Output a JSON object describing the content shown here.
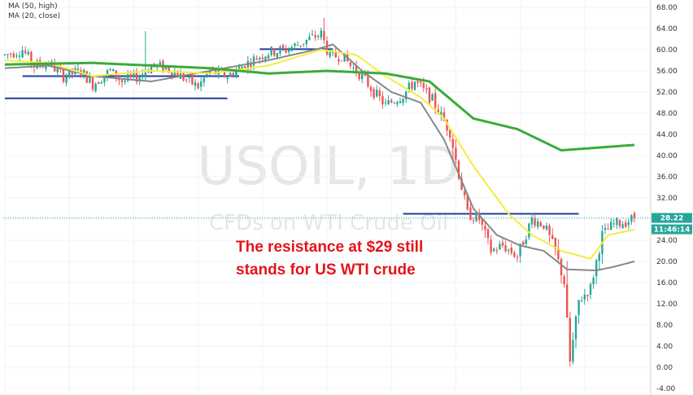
{
  "legend": {
    "ma50": "MA (50, high)",
    "ma20": "MA (20, close)"
  },
  "watermark": {
    "symbol": "USOIL, 1D",
    "description": "CFDs on WTI Crude Oil"
  },
  "annotation": {
    "line1": "The resistance at $29 still",
    "line2": "stands for US WTI crude"
  },
  "price_badge": {
    "price": "28.22",
    "countdown": "11:46:14"
  },
  "colors": {
    "up": "#26a69a",
    "down": "#ef5350",
    "ma50": "#3aab3a",
    "ma20": "#f5ec42",
    "ma_gray": "#888888",
    "level": "#1f3f9e",
    "badge": "#26a69a",
    "annotation": "#e4141b"
  },
  "chart_data": {
    "type": "candlestick",
    "symbol": "USOIL",
    "interval": "1D",
    "y_ticks": [
      "68.00",
      "64.00",
      "60.00",
      "56.00",
      "52.00",
      "48.00",
      "44.00",
      "40.00",
      "36.00",
      "32.00",
      "28.00",
      "24.00",
      "20.00",
      "16.00",
      "12.00",
      "8.00",
      "4.00",
      "0.00",
      "-4.00"
    ],
    "y_range": [
      -4,
      70
    ],
    "current_price": 28.22,
    "resistance_level": 29,
    "anchors": [
      [
        0,
        59
      ],
      [
        6,
        60
      ],
      [
        10,
        57
      ],
      [
        15,
        57.5
      ],
      [
        20,
        55
      ],
      [
        26,
        56
      ],
      [
        30,
        53.5
      ],
      [
        36,
        56
      ],
      [
        40,
        54
      ],
      [
        46,
        55
      ],
      [
        50,
        57
      ],
      [
        56,
        56.5
      ],
      [
        60,
        55
      ],
      [
        66,
        53
      ],
      [
        70,
        56
      ],
      [
        76,
        55
      ],
      [
        80,
        56.5
      ],
      [
        86,
        58.5
      ],
      [
        90,
        59.5
      ],
      [
        96,
        60
      ],
      [
        100,
        61
      ],
      [
        104,
        62
      ],
      [
        108,
        63
      ],
      [
        111,
        58.5
      ],
      [
        115,
        59
      ],
      [
        118,
        57
      ],
      [
        122,
        55
      ],
      [
        126,
        52
      ],
      [
        130,
        49.5
      ],
      [
        136,
        51.5
      ],
      [
        140,
        54
      ],
      [
        146,
        50.5
      ],
      [
        152,
        44.5
      ],
      [
        155,
        36.5
      ],
      [
        158,
        29
      ],
      [
        162,
        28
      ],
      [
        166,
        22
      ],
      [
        170,
        23
      ],
      [
        175,
        21
      ],
      [
        180,
        28
      ],
      [
        184,
        27
      ],
      [
        188,
        22
      ],
      [
        191,
        16
      ],
      [
        193,
        1
      ],
      [
        196,
        12.5
      ],
      [
        200,
        15
      ],
      [
        204,
        25
      ],
      [
        208,
        27
      ],
      [
        212,
        27.5
      ],
      [
        215,
        28.2
      ]
    ],
    "ma50_anchors": [
      [
        0,
        57.2
      ],
      [
        30,
        57.5
      ],
      [
        70,
        56.5
      ],
      [
        90,
        55.5
      ],
      [
        110,
        56
      ],
      [
        130,
        55.5
      ],
      [
        145,
        54
      ],
      [
        160,
        47
      ],
      [
        175,
        45
      ],
      [
        190,
        41
      ],
      [
        215,
        42
      ]
    ],
    "ma20_anchors": [
      [
        0,
        58
      ],
      [
        15,
        57.5
      ],
      [
        30,
        55
      ],
      [
        50,
        56
      ],
      [
        70,
        55.5
      ],
      [
        90,
        57
      ],
      [
        108,
        60
      ],
      [
        120,
        59
      ],
      [
        130,
        55
      ],
      [
        142,
        51
      ],
      [
        150,
        47
      ],
      [
        160,
        38
      ],
      [
        172,
        29
      ],
      [
        180,
        25
      ],
      [
        190,
        22
      ],
      [
        200,
        20.5
      ],
      [
        206,
        25
      ],
      [
        215,
        26
      ]
    ],
    "ma_gray_anchors": [
      [
        0,
        56.5
      ],
      [
        15,
        57
      ],
      [
        30,
        55
      ],
      [
        50,
        54
      ],
      [
        70,
        56
      ],
      [
        90,
        58
      ],
      [
        106,
        60
      ],
      [
        112,
        61
      ],
      [
        122,
        56
      ],
      [
        132,
        52
      ],
      [
        142,
        50
      ],
      [
        150,
        43
      ],
      [
        160,
        30
      ],
      [
        168,
        25
      ],
      [
        176,
        23
      ],
      [
        184,
        22
      ],
      [
        192,
        18.5
      ],
      [
        202,
        18.3
      ],
      [
        208,
        19
      ],
      [
        215,
        20
      ]
    ],
    "levels": [
      {
        "value": 50.8,
        "from": 0,
        "to": 76
      },
      {
        "value": 55.0,
        "from": 6,
        "to": 80
      },
      {
        "value": 60.1,
        "from": 87,
        "to": 112
      },
      {
        "value": 29.0,
        "from": 136,
        "to": 196
      }
    ]
  }
}
